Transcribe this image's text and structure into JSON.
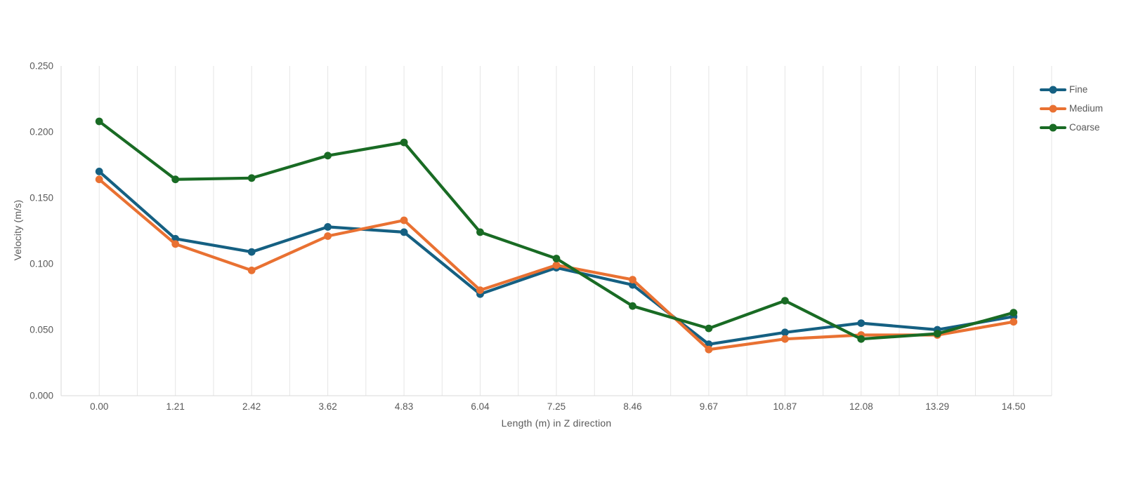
{
  "chart_data": {
    "type": "line",
    "title": "",
    "xlabel": "Length (m) in Z direction",
    "ylabel": "Velocity (m/s)",
    "x": [
      "0.00",
      "1.21",
      "2.42",
      "3.62",
      "4.83",
      "6.04",
      "7.25",
      "8.46",
      "9.67",
      "10.87",
      "12.08",
      "13.29",
      "14.50"
    ],
    "series": [
      {
        "name": "Fine",
        "color": "#156082",
        "values": [
          0.17,
          0.119,
          0.109,
          0.128,
          0.124,
          0.077,
          0.097,
          0.084,
          0.039,
          0.048,
          0.055,
          0.05,
          0.06
        ]
      },
      {
        "name": "Medium",
        "color": "#E97132",
        "values": [
          0.164,
          0.115,
          0.095,
          0.121,
          0.133,
          0.08,
          0.099,
          0.088,
          0.035,
          0.043,
          0.046,
          0.046,
          0.056
        ]
      },
      {
        "name": "Coarse",
        "color": "#196B24",
        "values": [
          0.208,
          0.164,
          0.165,
          0.182,
          0.192,
          0.124,
          0.104,
          0.068,
          0.051,
          0.072,
          0.043,
          0.047,
          0.063
        ]
      }
    ],
    "ylim": [
      0.0,
      0.25
    ],
    "yticks": [
      "0.000",
      "0.050",
      "0.100",
      "0.150",
      "0.200",
      "0.250"
    ],
    "grid": "vertical-only, minor gridlines at half-category intervals, no horizontal gridlines",
    "legend_position": "right",
    "colors": {
      "axis_line": "#D9D9D9",
      "gridline": "#E6E6E6",
      "text": "#595959",
      "background": "#FFFFFF"
    }
  }
}
